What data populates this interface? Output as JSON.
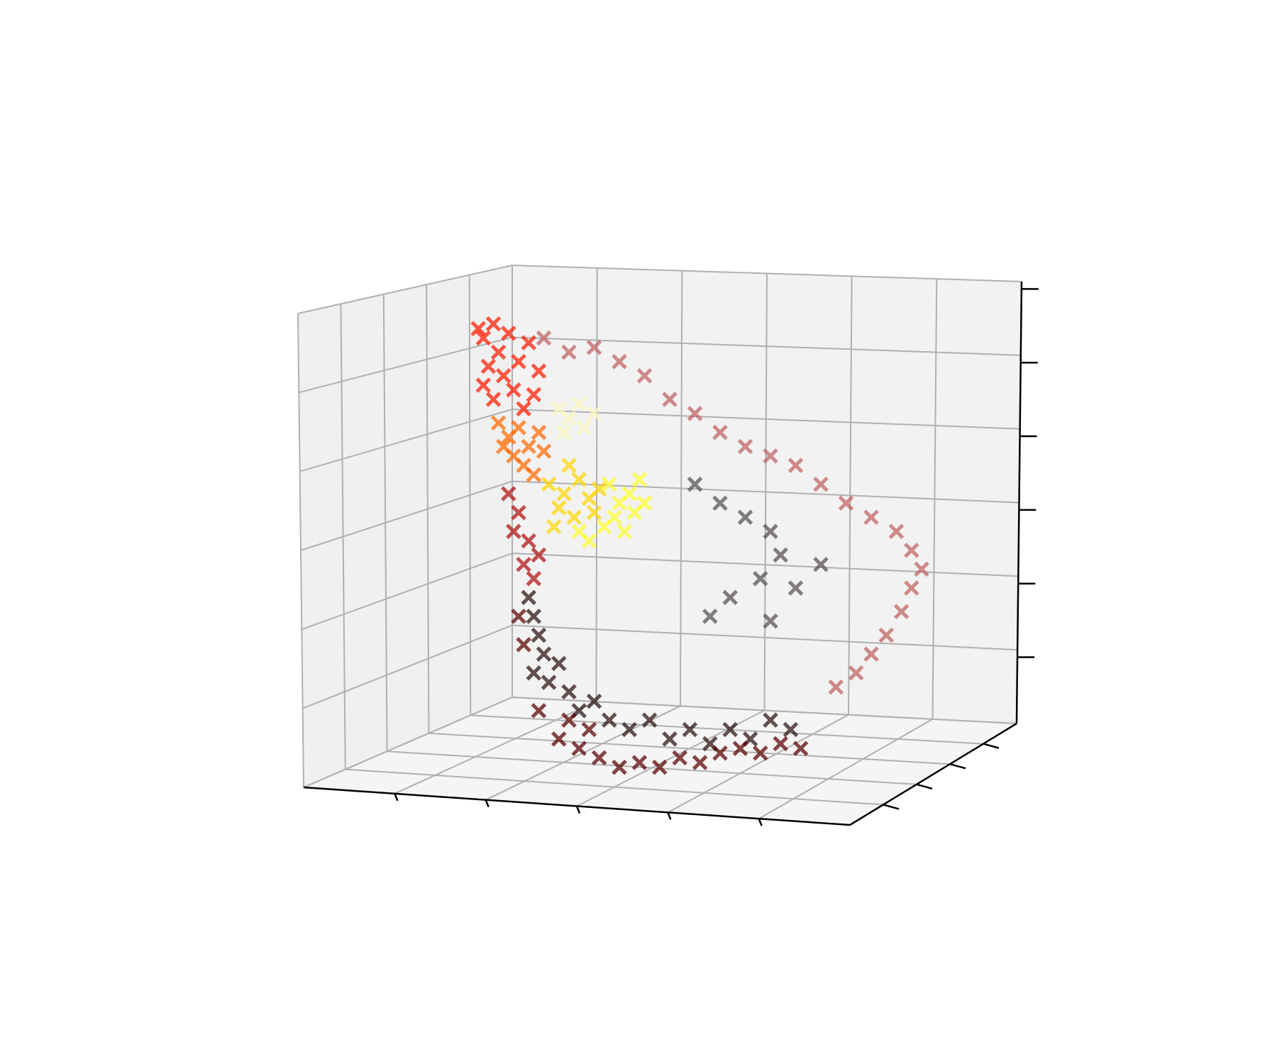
{
  "chart_data": {
    "type": "scatter",
    "dimensions": 3,
    "marker": "x",
    "colormap": "hot",
    "tick_labels_visible": false,
    "grid": true,
    "x_ticks": 6,
    "y_ticks": 5,
    "z_ticks": 6,
    "clusters": [
      {
        "name_hint": "",
        "color": "#ff1a00",
        "points_u": [
          [
            0.02,
            0.95
          ],
          [
            0.03,
            0.93
          ],
          [
            0.05,
            0.96
          ],
          [
            0.06,
            0.9
          ],
          [
            0.08,
            0.94
          ],
          [
            0.1,
            0.88
          ],
          [
            0.07,
            0.85
          ],
          [
            0.04,
            0.87
          ],
          [
            0.12,
            0.92
          ],
          [
            0.09,
            0.82
          ],
          [
            0.05,
            0.8
          ],
          [
            0.11,
            0.78
          ],
          [
            0.14,
            0.86
          ],
          [
            0.03,
            0.83
          ],
          [
            0.13,
            0.81
          ]
        ]
      },
      {
        "name_hint": "",
        "color": "#ff6a00",
        "points_u": [
          [
            0.06,
            0.75
          ],
          [
            0.08,
            0.72
          ],
          [
            0.1,
            0.74
          ],
          [
            0.12,
            0.7
          ],
          [
            0.09,
            0.68
          ],
          [
            0.14,
            0.73
          ],
          [
            0.07,
            0.7
          ],
          [
            0.11,
            0.66
          ],
          [
            0.15,
            0.69
          ],
          [
            0.13,
            0.64
          ]
        ]
      },
      {
        "name_hint": "",
        "color": "#ffd700",
        "points_u": [
          [
            0.16,
            0.62
          ],
          [
            0.19,
            0.6
          ],
          [
            0.22,
            0.63
          ],
          [
            0.18,
            0.57
          ],
          [
            0.24,
            0.59
          ],
          [
            0.21,
            0.55
          ],
          [
            0.26,
            0.61
          ],
          [
            0.17,
            0.53
          ],
          [
            0.25,
            0.56
          ],
          [
            0.2,
            0.66
          ]
        ]
      },
      {
        "name_hint": "",
        "color": "#ffff30",
        "points_u": [
          [
            0.28,
            0.62
          ],
          [
            0.3,
            0.58
          ],
          [
            0.32,
            0.6
          ],
          [
            0.29,
            0.55
          ],
          [
            0.33,
            0.56
          ],
          [
            0.27,
            0.53
          ],
          [
            0.31,
            0.52
          ],
          [
            0.34,
            0.63
          ],
          [
            0.24,
            0.5
          ],
          [
            0.22,
            0.52
          ],
          [
            0.35,
            0.58
          ]
        ]
      },
      {
        "name_hint": "",
        "color": "#fffac0",
        "points_u": [
          [
            0.18,
            0.78
          ],
          [
            0.2,
            0.76
          ],
          [
            0.22,
            0.79
          ],
          [
            0.19,
            0.73
          ],
          [
            0.23,
            0.74
          ],
          [
            0.25,
            0.77
          ]
        ]
      },
      {
        "name_hint": "",
        "color": "#b01010",
        "points_u": [
          [
            0.08,
            0.6
          ],
          [
            0.1,
            0.56
          ],
          [
            0.09,
            0.52
          ],
          [
            0.12,
            0.5
          ],
          [
            0.11,
            0.45
          ],
          [
            0.14,
            0.47
          ],
          [
            0.13,
            0.42
          ]
        ]
      },
      {
        "name_hint": "",
        "color": "#c06060",
        "points_u": [
          [
            0.15,
            0.93
          ],
          [
            0.2,
            0.9
          ],
          [
            0.25,
            0.91
          ],
          [
            0.3,
            0.88
          ],
          [
            0.35,
            0.85
          ],
          [
            0.4,
            0.8
          ],
          [
            0.45,
            0.77
          ],
          [
            0.5,
            0.73
          ],
          [
            0.55,
            0.7
          ],
          [
            0.6,
            0.68
          ],
          [
            0.65,
            0.66
          ],
          [
            0.7,
            0.62
          ],
          [
            0.75,
            0.58
          ],
          [
            0.8,
            0.55
          ],
          [
            0.85,
            0.52
          ],
          [
            0.88,
            0.48
          ],
          [
            0.9,
            0.44
          ],
          [
            0.88,
            0.4
          ],
          [
            0.86,
            0.35
          ],
          [
            0.83,
            0.3
          ],
          [
            0.8,
            0.26
          ],
          [
            0.77,
            0.22
          ],
          [
            0.73,
            0.19
          ]
        ]
      },
      {
        "name_hint": "",
        "color": "#555050",
        "points_u": [
          [
            0.45,
            0.62
          ],
          [
            0.5,
            0.58
          ],
          [
            0.55,
            0.55
          ],
          [
            0.6,
            0.52
          ],
          [
            0.62,
            0.47
          ],
          [
            0.58,
            0.42
          ],
          [
            0.52,
            0.38
          ],
          [
            0.48,
            0.34
          ],
          [
            0.6,
            0.33
          ],
          [
            0.65,
            0.4
          ],
          [
            0.7,
            0.45
          ]
        ]
      },
      {
        "name_hint": "",
        "color": "#2a1010",
        "points_u": [
          [
            0.12,
            0.38
          ],
          [
            0.13,
            0.34
          ],
          [
            0.14,
            0.3
          ],
          [
            0.15,
            0.26
          ],
          [
            0.13,
            0.22
          ],
          [
            0.16,
            0.2
          ],
          [
            0.18,
            0.24
          ],
          [
            0.2,
            0.18
          ],
          [
            0.22,
            0.14
          ],
          [
            0.25,
            0.16
          ],
          [
            0.28,
            0.12
          ],
          [
            0.32,
            0.1
          ],
          [
            0.36,
            0.12
          ],
          [
            0.4,
            0.08
          ],
          [
            0.44,
            0.1
          ],
          [
            0.48,
            0.07
          ],
          [
            0.52,
            0.1
          ],
          [
            0.56,
            0.08
          ],
          [
            0.6,
            0.12
          ],
          [
            0.64,
            0.1
          ]
        ]
      },
      {
        "name_hint": "",
        "color": "#5a0000",
        "points_u": [
          [
            0.18,
            0.08
          ],
          [
            0.22,
            0.06
          ],
          [
            0.26,
            0.04
          ],
          [
            0.3,
            0.02
          ],
          [
            0.34,
            0.03
          ],
          [
            0.38,
            0.02
          ],
          [
            0.42,
            0.04
          ],
          [
            0.46,
            0.03
          ],
          [
            0.5,
            0.05
          ],
          [
            0.54,
            0.06
          ],
          [
            0.58,
            0.05
          ],
          [
            0.62,
            0.07
          ],
          [
            0.66,
            0.06
          ],
          [
            0.2,
            0.12
          ],
          [
            0.24,
            0.1
          ],
          [
            0.14,
            0.14
          ],
          [
            0.11,
            0.28
          ],
          [
            0.1,
            0.34
          ]
        ]
      }
    ]
  }
}
